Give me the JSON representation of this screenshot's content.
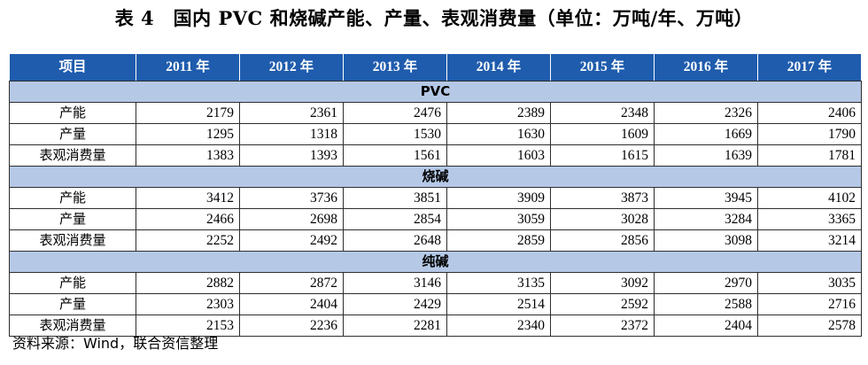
{
  "title": "表 4　国内 PVC 和烧碱产能、产量、表观消费量（单位：万吨/年、万吨）",
  "table": {
    "header": [
      "项目",
      "2011 年",
      "2012 年",
      "2013 年",
      "2014 年",
      "2015 年",
      "2016 年",
      "2017 年"
    ],
    "sections": [
      {
        "name": "PVC",
        "rows": [
          {
            "label": "产能",
            "values": [
              "2179",
              "2361",
              "2476",
              "2389",
              "2348",
              "2326",
              "2406"
            ]
          },
          {
            "label": "产量",
            "values": [
              "1295",
              "1318",
              "1530",
              "1630",
              "1609",
              "1669",
              "1790"
            ]
          },
          {
            "label": "表观消费量",
            "values": [
              "1383",
              "1393",
              "1561",
              "1603",
              "1615",
              "1639",
              "1781"
            ]
          }
        ]
      },
      {
        "name": "烧碱",
        "rows": [
          {
            "label": "产能",
            "values": [
              "3412",
              "3736",
              "3851",
              "3909",
              "3873",
              "3945",
              "4102"
            ]
          },
          {
            "label": "产量",
            "values": [
              "2466",
              "2698",
              "2854",
              "3059",
              "3028",
              "3284",
              "3365"
            ]
          },
          {
            "label": "表观消费量",
            "values": [
              "2252",
              "2492",
              "2648",
              "2859",
              "2856",
              "3098",
              "3214"
            ]
          }
        ]
      },
      {
        "name": "纯碱",
        "rows": [
          {
            "label": "产能",
            "values": [
              "2882",
              "2872",
              "3146",
              "3135",
              "3092",
              "2970",
              "3035"
            ]
          },
          {
            "label": "产量",
            "values": [
              "2303",
              "2404",
              "2429",
              "2514",
              "2592",
              "2588",
              "2716"
            ]
          },
          {
            "label": "表观消费量",
            "values": [
              "2153",
              "2236",
              "2281",
              "2340",
              "2372",
              "2404",
              "2578"
            ]
          }
        ]
      }
    ]
  },
  "source": "资料来源：Wind，联合资信整理",
  "colors": {
    "header_bg": "#1f5cad",
    "section_bg": "#b5c8e6"
  }
}
